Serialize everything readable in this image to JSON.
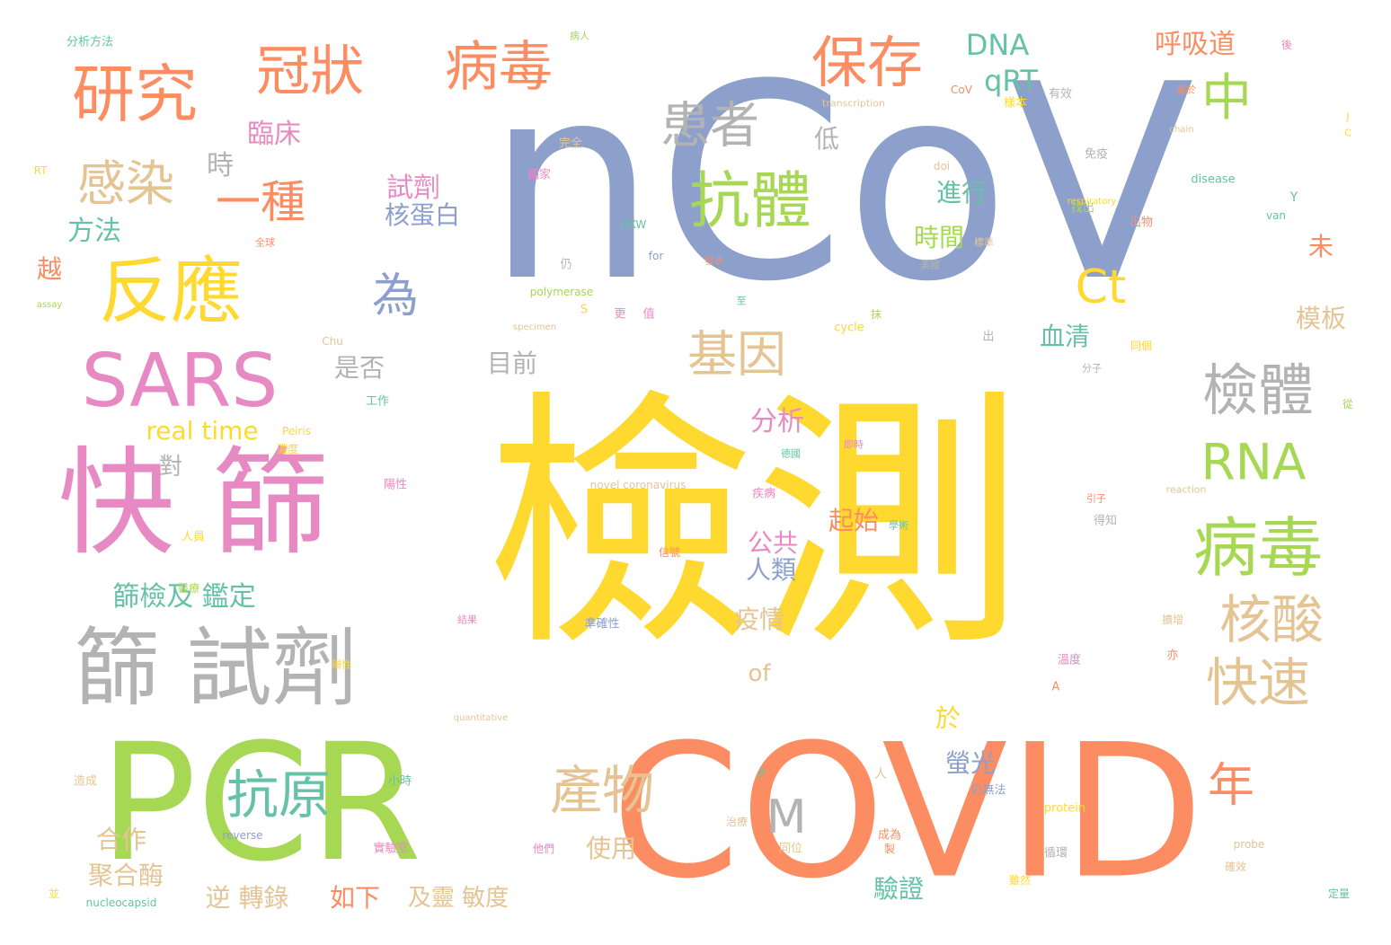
{
  "palette": {
    "blue": "#8da0cb",
    "yellow": "#ffd92f",
    "green": "#a6d854",
    "orange": "#fc8d62",
    "pink": "#e78ac3",
    "gray": "#b3b3b3",
    "tan": "#e5c494",
    "teal": "#66c2a5"
  },
  "words": [
    {
      "text": "nCoV",
      "color": "blue"
    },
    {
      "text": "檢測",
      "color": "yellow"
    },
    {
      "text": "COVID",
      "color": "orange"
    },
    {
      "text": "PCR",
      "color": "green"
    },
    {
      "text": "快 篩",
      "color": "pink"
    },
    {
      "text": "篩 試劑",
      "color": "gray"
    },
    {
      "text": "SARS",
      "color": "pink"
    },
    {
      "text": "反應",
      "color": "yellow"
    },
    {
      "text": "研究",
      "color": "orange"
    },
    {
      "text": "冠狀",
      "color": "orange"
    },
    {
      "text": "病毒",
      "color": "orange"
    },
    {
      "text": "抗體",
      "color": "green"
    },
    {
      "text": "保存",
      "color": "orange"
    },
    {
      "text": "患者",
      "color": "gray"
    },
    {
      "text": "感染",
      "color": "tan"
    },
    {
      "text": "一種",
      "color": "orange"
    },
    {
      "text": "檢體",
      "color": "gray"
    },
    {
      "text": "病毒",
      "color": "green"
    },
    {
      "text": "RNA",
      "color": "green"
    },
    {
      "text": "核酸",
      "color": "tan"
    },
    {
      "text": "快速",
      "color": "tan"
    },
    {
      "text": "中",
      "color": "green"
    },
    {
      "text": "Ct",
      "color": "yellow"
    },
    {
      "text": "基因",
      "color": "tan"
    },
    {
      "text": "產物",
      "color": "tan"
    },
    {
      "text": "抗原",
      "color": "teal"
    },
    {
      "text": "年",
      "color": "orange"
    },
    {
      "text": "M",
      "color": "gray"
    },
    {
      "text": "為",
      "color": "blue"
    },
    {
      "text": "DNA",
      "color": "teal"
    },
    {
      "text": "qRT",
      "color": "teal"
    },
    {
      "text": "呼吸道",
      "color": "orange"
    },
    {
      "text": "臨床",
      "color": "pink"
    },
    {
      "text": "時",
      "color": "gray"
    },
    {
      "text": "方法",
      "color": "teal"
    },
    {
      "text": "越",
      "color": "orange"
    },
    {
      "text": "低",
      "color": "gray"
    },
    {
      "text": "試劑",
      "color": "pink"
    },
    {
      "text": "核蛋白",
      "color": "blue"
    },
    {
      "text": "進行",
      "color": "teal"
    },
    {
      "text": "時間",
      "color": "green"
    },
    {
      "text": "未",
      "color": "orange"
    },
    {
      "text": "模板",
      "color": "tan"
    },
    {
      "text": "血清",
      "color": "teal"
    },
    {
      "text": "是否",
      "color": "gray"
    },
    {
      "text": "目前",
      "color": "gray"
    },
    {
      "text": "real time",
      "color": "yellow"
    },
    {
      "text": "分析",
      "color": "pink"
    },
    {
      "text": "對",
      "color": "gray"
    },
    {
      "text": "起始",
      "color": "orange"
    },
    {
      "text": "公共",
      "color": "pink"
    },
    {
      "text": "人類",
      "color": "blue"
    },
    {
      "text": "篩檢及 鑑定",
      "color": "teal"
    },
    {
      "text": "疫情",
      "color": "tan"
    },
    {
      "text": "of",
      "color": "tan"
    },
    {
      "text": "於",
      "color": "yellow"
    },
    {
      "text": "螢光",
      "color": "blue"
    },
    {
      "text": "合作",
      "color": "tan"
    },
    {
      "text": "使用",
      "color": "tan"
    },
    {
      "text": "聚合酶",
      "color": "tan"
    },
    {
      "text": "逆 轉錄",
      "color": "tan"
    },
    {
      "text": "如下",
      "color": "orange"
    },
    {
      "text": "及靈 敏度",
      "color": "tan"
    },
    {
      "text": "驗證",
      "color": "teal"
    },
    {
      "text": "分析方法",
      "color": "teal"
    },
    {
      "text": "transcription",
      "color": "tan"
    },
    {
      "text": "novel coronavirus",
      "color": "tan"
    },
    {
      "text": "polymerase",
      "color": "green"
    },
    {
      "text": "respiratory",
      "color": "yellow"
    },
    {
      "text": "disease",
      "color": "teal"
    },
    {
      "text": "nucleocapsid",
      "color": "teal"
    },
    {
      "text": "protein",
      "color": "yellow"
    },
    {
      "text": "reverse",
      "color": "blue"
    },
    {
      "text": "probe",
      "color": "tan"
    },
    {
      "text": "quantitative",
      "color": "tan"
    },
    {
      "text": "specimen",
      "color": "tan"
    },
    {
      "text": "reaction",
      "color": "tan"
    },
    {
      "text": "cycle",
      "color": "yellow"
    },
    {
      "text": "assay",
      "color": "green"
    },
    {
      "text": "chain",
      "color": "tan"
    },
    {
      "text": "Peiris",
      "color": "yellow"
    },
    {
      "text": "Chu",
      "color": "tan"
    },
    {
      "text": "van",
      "color": "teal"
    },
    {
      "text": "doi",
      "color": "tan"
    },
    {
      "text": "DKW",
      "color": "teal"
    },
    {
      "text": "CoV",
      "color": "orange"
    },
    {
      "text": "for",
      "color": "blue"
    },
    {
      "text": "RT",
      "color": "yellow"
    },
    {
      "text": "免疫",
      "color": "gray"
    },
    {
      "text": "找出",
      "color": "green"
    },
    {
      "text": "出物",
      "color": "orange"
    },
    {
      "text": "有效",
      "color": "gray"
    },
    {
      "text": "樣本",
      "color": "yellow"
    },
    {
      "text": "完全",
      "color": "tan"
    },
    {
      "text": "國家",
      "color": "pink"
    },
    {
      "text": "工作",
      "color": "teal"
    },
    {
      "text": "人員",
      "color": "yellow"
    },
    {
      "text": "醫療",
      "color": "green"
    },
    {
      "text": "信號",
      "color": "orange"
    },
    {
      "text": "準確性",
      "color": "blue"
    },
    {
      "text": "疾病",
      "color": "pink"
    },
    {
      "text": "得知",
      "color": "gray"
    },
    {
      "text": "小時",
      "color": "teal"
    },
    {
      "text": "實驗室",
      "color": "pink"
    },
    {
      "text": "他們",
      "color": "pink"
    },
    {
      "text": "循環",
      "color": "gray"
    },
    {
      "text": "成為",
      "color": "orange"
    },
    {
      "text": "仍無法",
      "color": "blue"
    },
    {
      "text": "雖然",
      "color": "yellow"
    },
    {
      "text": "確效",
      "color": "tan"
    },
    {
      "text": "造成",
      "color": "tan"
    },
    {
      "text": "同位",
      "color": "tan"
    },
    {
      "text": "治療",
      "color": "tan"
    },
    {
      "text": "人",
      "color": "tan"
    },
    {
      "text": "P",
      "color": "teal"
    },
    {
      "text": "S",
      "color": "yellow"
    },
    {
      "text": "A",
      "color": "orange"
    },
    {
      "text": "Y",
      "color": "teal"
    },
    {
      "text": "J",
      "color": "yellow"
    },
    {
      "text": "C",
      "color": "yellow"
    },
    {
      "text": "後",
      "color": "pink"
    },
    {
      "text": "亦",
      "color": "orange"
    },
    {
      "text": "從",
      "color": "green"
    },
    {
      "text": "出",
      "color": "gray"
    },
    {
      "text": "更",
      "color": "pink"
    },
    {
      "text": "值",
      "color": "pink"
    },
    {
      "text": "抹",
      "color": "green"
    },
    {
      "text": "仍",
      "color": "gray"
    },
    {
      "text": "製",
      "color": "orange"
    },
    {
      "text": "至",
      "color": "teal"
    },
    {
      "text": "並",
      "color": "yellow"
    },
    {
      "text": "同個",
      "color": "yellow"
    },
    {
      "text": "陽性",
      "color": "pink"
    },
    {
      "text": "溫度",
      "color": "pink"
    },
    {
      "text": "濃度",
      "color": "yellow"
    },
    {
      "text": "基於",
      "color": "orange"
    },
    {
      "text": "分子",
      "color": "gray"
    },
    {
      "text": "即時",
      "color": "pink"
    },
    {
      "text": "德國",
      "color": "teal"
    },
    {
      "text": "陽性",
      "color": "yellow"
    },
    {
      "text": "擴增",
      "color": "tan"
    },
    {
      "text": "病人",
      "color": "green"
    },
    {
      "text": "引子",
      "color": "orange"
    },
    {
      "text": "結果",
      "color": "pink"
    },
    {
      "text": "發表",
      "color": "orange"
    },
    {
      "text": "標準",
      "color": "tan"
    },
    {
      "text": "學術",
      "color": "teal"
    },
    {
      "text": "定量",
      "color": "teal"
    },
    {
      "text": "美國",
      "color": "gray"
    },
    {
      "text": "全球",
      "color": "orange"
    }
  ]
}
